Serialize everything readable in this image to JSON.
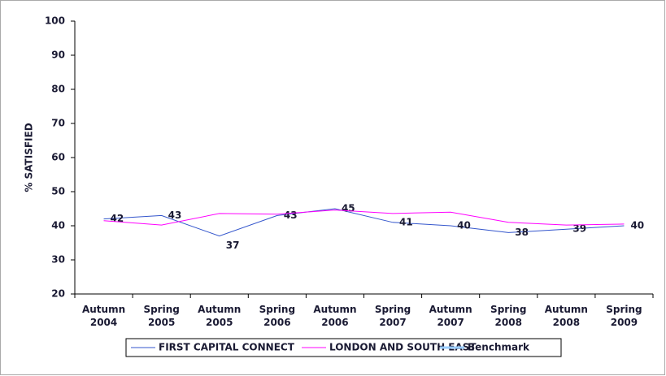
{
  "chart_data": {
    "type": "line",
    "y_label": "% SATISFIED",
    "categories": [
      "Autumn 2004",
      "Spring 2005",
      "Autumn 2005",
      "Spring 2006",
      "Autumn 2006",
      "Spring 2007",
      "Autumn 2007",
      "Spring 2008",
      "Autumn 2008",
      "Spring 2009"
    ],
    "series": [
      {
        "name": "FIRST CAPITAL CONNECT",
        "color": "#3355cc",
        "values": [
          42,
          43,
          37,
          43,
          45,
          41,
          40,
          38,
          39,
          40
        ],
        "data_labels": true
      },
      {
        "name": "LONDON AND SOUTH EAST",
        "color": "#ff00ff",
        "values": [
          41.5,
          40.2,
          43.6,
          43.4,
          44.6,
          43.6,
          44,
          41,
          40.2,
          40.5
        ]
      },
      {
        "name": "Benchmark",
        "color": "#99ccff",
        "values": [
          null,
          null,
          null,
          null,
          null,
          null,
          null,
          null,
          null,
          null
        ]
      }
    ],
    "ylim": [
      20,
      100
    ],
    "yticks": [
      20,
      30,
      40,
      50,
      60,
      70,
      80,
      90,
      100
    ],
    "legend": "bottom"
  }
}
